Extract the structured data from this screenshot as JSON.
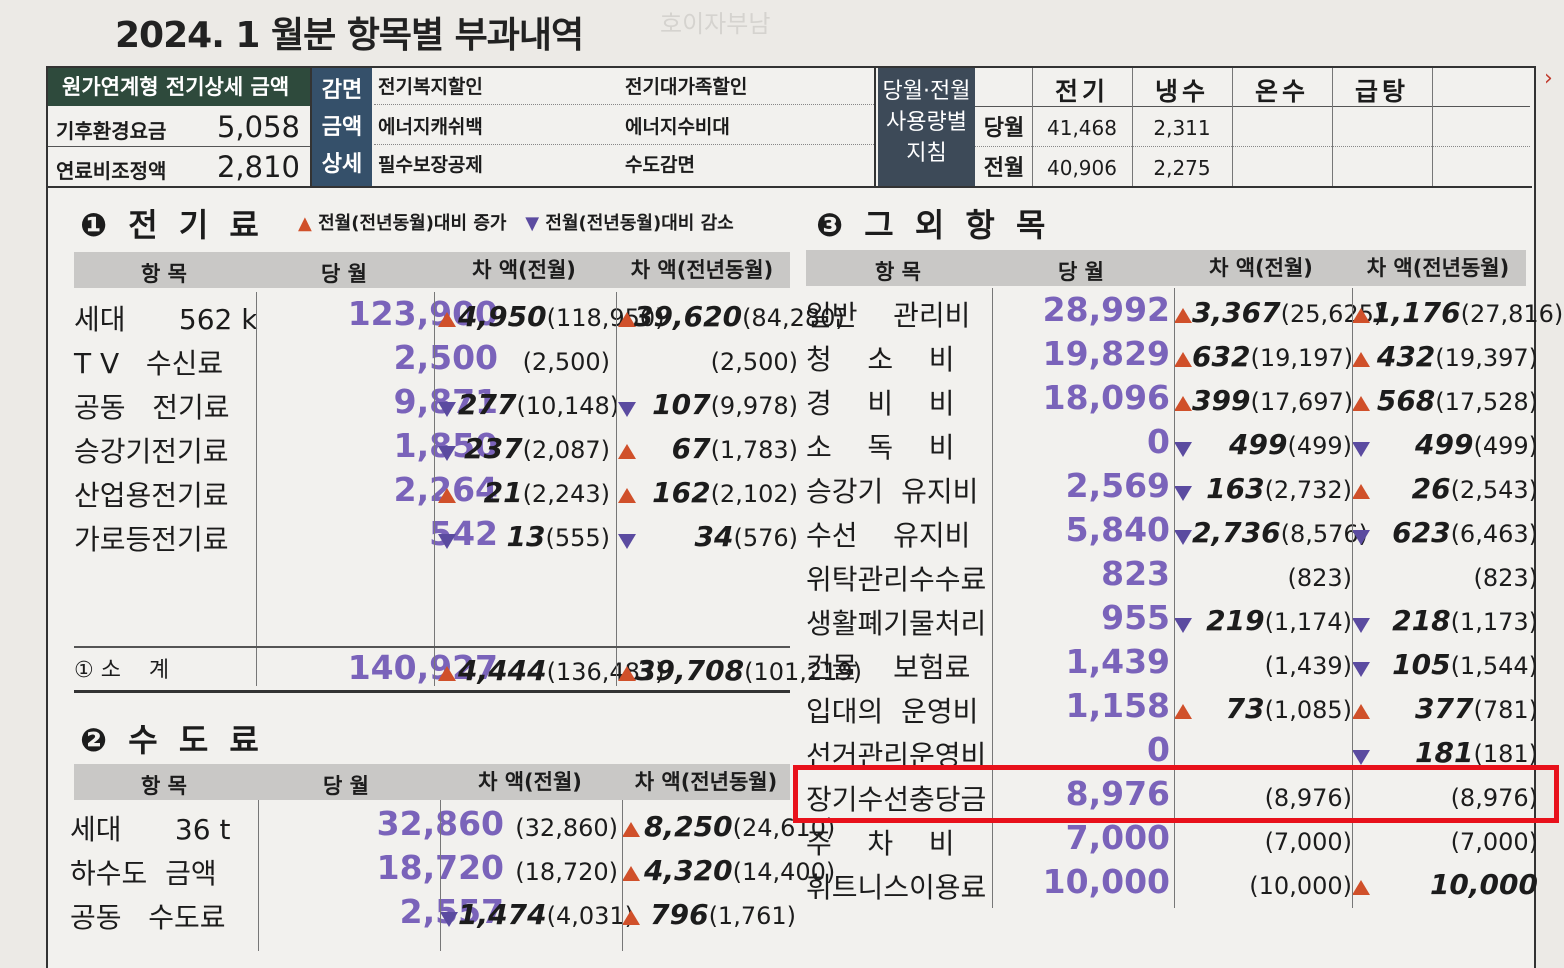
{
  "title": "2024. 1 월분 항목별 부과내역",
  "ghost_title": "호이자부남",
  "header": {
    "top_label": "원가연계형 전기상세 금액",
    "rows": [
      {
        "label": "기후환경요금",
        "value": "5,058"
      },
      {
        "label": "연료비조정액",
        "value": "2,810"
      }
    ],
    "deduction_label": "감면 금액 상세",
    "deductions": [
      "전기복지할인",
      "전기대가족할인",
      "에너지캐쉬백",
      "에너지수비대",
      "필수보장공제",
      "수도감면"
    ],
    "usage_label": "당월·전월 사용량별 지침",
    "usage_cols": [
      "전기",
      "냉수",
      "온수",
      "급탕"
    ],
    "usage_rows": [
      {
        "label": "당월",
        "values": [
          "41,468",
          "2,311",
          "",
          ""
        ]
      },
      {
        "label": "전월",
        "values": [
          "40,906",
          "2,275",
          "",
          ""
        ]
      }
    ]
  },
  "legend": {
    "up": "전월(전년동월)대비 증가",
    "down": "전월(전년동월)대비 감소"
  },
  "sections": {
    "electric": {
      "title": "❶ 전 기 료",
      "headers": [
        "항 목",
        "당 월",
        "차 액(전월)",
        "차 액(전년동월)"
      ],
      "rows": [
        {
          "name": "세대      562 k",
          "cur": "123,900",
          "d1_dir": "up",
          "d1": "4,950",
          "d1p": "(118,950)",
          "d2_dir": "up",
          "d2": "39,620",
          "d2p": "(84,280)"
        },
        {
          "name": "T V   수신료",
          "cur": "2,500",
          "d1_dir": "",
          "d1": "",
          "d1p": "(2,500)",
          "d2_dir": "",
          "d2": "",
          "d2p": "(2,500)"
        },
        {
          "name": "공동   전기료",
          "cur": "9,871",
          "d1_dir": "dn",
          "d1": "277",
          "d1p": "(10,148)",
          "d2_dir": "dn",
          "d2": "107",
          "d2p": "(9,978)"
        },
        {
          "name": "승강기전기료",
          "cur": "1,850",
          "d1_dir": "dn",
          "d1": "237",
          "d1p": "(2,087)",
          "d2_dir": "up",
          "d2": "67",
          "d2p": "(1,783)"
        },
        {
          "name": "산업용전기료",
          "cur": "2,264",
          "d1_dir": "up",
          "d1": "21",
          "d1p": "(2,243)",
          "d2_dir": "up",
          "d2": "162",
          "d2p": "(2,102)"
        },
        {
          "name": "가로등전기료",
          "cur": "542",
          "d1_dir": "dn",
          "d1": "13",
          "d1p": "(555)",
          "d2_dir": "dn",
          "d2": "34",
          "d2p": "(576)"
        }
      ],
      "subtotal": {
        "name": "① 소    계",
        "cur": "140,927",
        "d1_dir": "up",
        "d1": "4,444",
        "d1p": "(136,483)",
        "d2_dir": "up",
        "d2": "39,708",
        "d2p": "(101,219)"
      }
    },
    "water": {
      "title": "❷ 수 도 료",
      "headers": [
        "항 목",
        "당 월",
        "차 액(전월)",
        "차 액(전년동월)"
      ],
      "rows": [
        {
          "name": "세대      36 t",
          "cur": "32,860",
          "d1_dir": "",
          "d1": "",
          "d1p": "(32,860)",
          "d2_dir": "up",
          "d2": "8,250",
          "d2p": "(24,610)"
        },
        {
          "name": "하수도  금액",
          "cur": "18,720",
          "d1_dir": "",
          "d1": "",
          "d1p": "(18,720)",
          "d2_dir": "up",
          "d2": "4,320",
          "d2p": "(14,400)"
        },
        {
          "name": "공동   수도료",
          "cur": "2,557",
          "d1_dir": "dn",
          "d1": "1,474",
          "d1p": "(4,031)",
          "d2_dir": "up",
          "d2": "796",
          "d2p": "(1,761)"
        }
      ]
    },
    "others": {
      "title": "❸ 그 외 항 목",
      "headers": [
        "항 목",
        "당 월",
        "차 액(전월)",
        "차 액(전년동월)"
      ],
      "rows": [
        {
          "name": "일반    관리비",
          "cur": "28,992",
          "d1_dir": "up",
          "d1": "3,367",
          "d1p": "(25,625)",
          "d2_dir": "up",
          "d2": "1,176",
          "d2p": "(27,816)"
        },
        {
          "name": "청    소    비",
          "cur": "19,829",
          "d1_dir": "up",
          "d1": "632",
          "d1p": "(19,197)",
          "d2_dir": "up",
          "d2": "432",
          "d2p": "(19,397)"
        },
        {
          "name": "경    비    비",
          "cur": "18,096",
          "d1_dir": "up",
          "d1": "399",
          "d1p": "(17,697)",
          "d2_dir": "up",
          "d2": "568",
          "d2p": "(17,528)"
        },
        {
          "name": "소    독    비",
          "cur": "0",
          "d1_dir": "dn",
          "d1": "499",
          "d1p": "(499)",
          "d2_dir": "dn",
          "d2": "499",
          "d2p": "(499)"
        },
        {
          "name": "승강기  유지비",
          "cur": "2,569",
          "d1_dir": "dn",
          "d1": "163",
          "d1p": "(2,732)",
          "d2_dir": "up",
          "d2": "26",
          "d2p": "(2,543)"
        },
        {
          "name": "수선    유지비",
          "cur": "5,840",
          "d1_dir": "dn",
          "d1": "2,736",
          "d1p": "(8,576)",
          "d2_dir": "dn",
          "d2": "623",
          "d2p": "(6,463)"
        },
        {
          "name": "위탁관리수수료",
          "cur": "823",
          "d1_dir": "",
          "d1": "",
          "d1p": "(823)",
          "d2_dir": "",
          "d2": "",
          "d2p": "(823)"
        },
        {
          "name": "생활폐기물처리",
          "cur": "955",
          "d1_dir": "dn",
          "d1": "219",
          "d1p": "(1,174)",
          "d2_dir": "dn",
          "d2": "218",
          "d2p": "(1,173)"
        },
        {
          "name": "건물    보험료",
          "cur": "1,439",
          "d1_dir": "",
          "d1": "",
          "d1p": "(1,439)",
          "d2_dir": "dn",
          "d2": "105",
          "d2p": "(1,544)"
        },
        {
          "name": "입대의  운영비",
          "cur": "1,158",
          "d1_dir": "up",
          "d1": "73",
          "d1p": "(1,085)",
          "d2_dir": "up",
          "d2": "377",
          "d2p": "(781)"
        },
        {
          "name": "선거관리운영비",
          "cur": "0",
          "d1_dir": "",
          "d1": "",
          "d1p": "",
          "d2_dir": "dn",
          "d2": "181",
          "d2p": "(181)"
        },
        {
          "name": "장기수선충당금",
          "cur": "8,976",
          "d1_dir": "",
          "d1": "",
          "d1p": "(8,976)",
          "d2_dir": "",
          "d2": "",
          "d2p": "(8,976)"
        },
        {
          "name": "주    차    비",
          "cur": "7,000",
          "d1_dir": "",
          "d1": "",
          "d1p": "(7,000)",
          "d2_dir": "",
          "d2": "",
          "d2p": "(7,000)"
        },
        {
          "name": "휘트니스이용료",
          "cur": "10,000",
          "d1_dir": "",
          "d1": "",
          "d1p": "(10,000)",
          "d2_dir": "up",
          "d2": "10,000",
          "d2p": ""
        }
      ]
    }
  },
  "colors": {
    "up": "#d0502a",
    "down": "#5b4ba0",
    "current_value": "#7a63ba",
    "highlight": "#e8111b"
  }
}
